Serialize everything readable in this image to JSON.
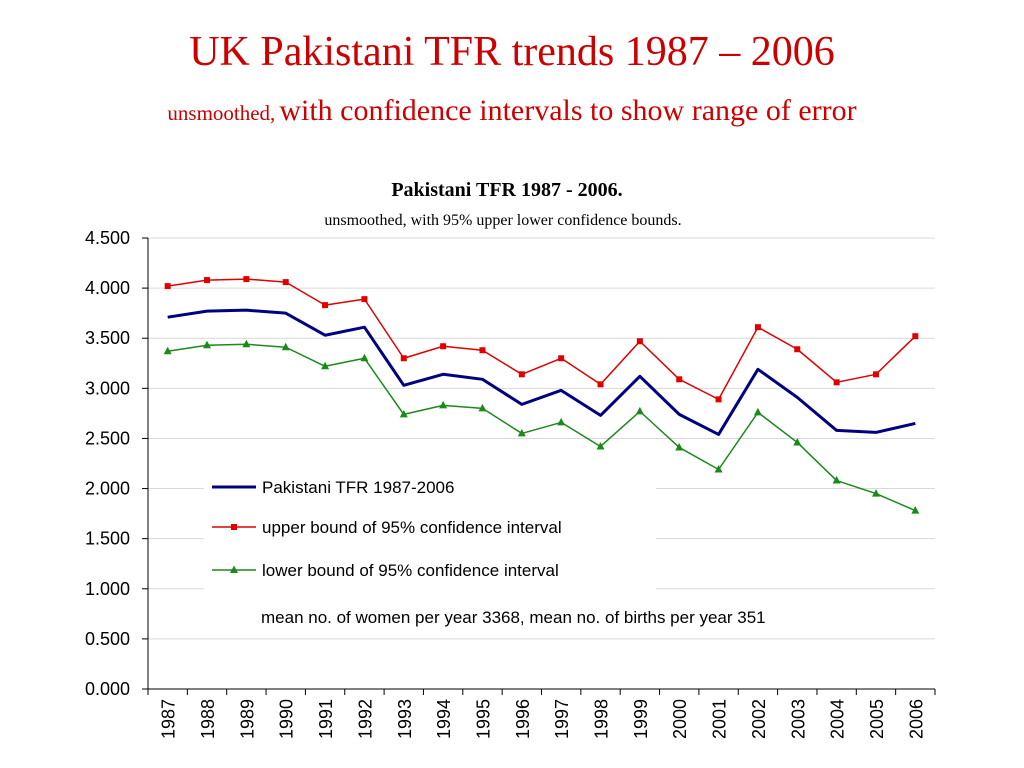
{
  "slide": {
    "title": "UK Pakistani TFR trends 1987 – 2006",
    "subtitle_small": "unsmoothed,",
    "subtitle_large": "with confidence intervals to show range of error"
  },
  "chart_data": {
    "type": "line",
    "title": "Pakistani TFR 1987 - 2006.",
    "subtitle": "unsmoothed, with 95% upper lower confidence bounds.",
    "xlabel": "",
    "ylabel": "",
    "ylim": [
      0,
      4.5
    ],
    "yticks": [
      "0.000",
      "0.500",
      "1.000",
      "1.500",
      "2.000",
      "2.500",
      "3.000",
      "3.500",
      "4.000",
      "4.500"
    ],
    "categories": [
      "1987",
      "1988",
      "1989",
      "1990",
      "1991",
      "1992",
      "1993",
      "1994",
      "1995",
      "1996",
      "1997",
      "1998",
      "1999",
      "2000",
      "2001",
      "2002",
      "2003",
      "2004",
      "2005",
      "2006"
    ],
    "grid": true,
    "legend_position": "center-left inside plot",
    "series": [
      {
        "name": "Pakistani TFR 1987-2006",
        "color": "#000080",
        "marker": "none",
        "values": [
          3.71,
          3.77,
          3.78,
          3.75,
          3.53,
          3.61,
          3.03,
          3.14,
          3.09,
          2.84,
          2.98,
          2.73,
          3.12,
          2.74,
          2.54,
          3.19,
          2.91,
          2.58,
          2.56,
          2.65
        ]
      },
      {
        "name": "upper bound of 95% confidence interval",
        "color": "#e00000",
        "marker": "square",
        "values": [
          4.02,
          4.08,
          4.09,
          4.06,
          3.83,
          3.89,
          3.3,
          3.42,
          3.38,
          3.14,
          3.3,
          3.04,
          3.47,
          3.09,
          2.89,
          3.61,
          3.39,
          3.06,
          3.14,
          3.52
        ]
      },
      {
        "name": "lower bound of 95% confidence interval",
        "color": "#1a8a1a",
        "marker": "triangle",
        "values": [
          3.37,
          3.43,
          3.44,
          3.41,
          3.22,
          3.3,
          2.74,
          2.83,
          2.8,
          2.55,
          2.66,
          2.42,
          2.77,
          2.41,
          2.19,
          2.76,
          2.46,
          2.08,
          1.95,
          1.78
        ]
      }
    ],
    "annotation": "mean no. of women per year 3368, mean no. of births per year 351"
  }
}
